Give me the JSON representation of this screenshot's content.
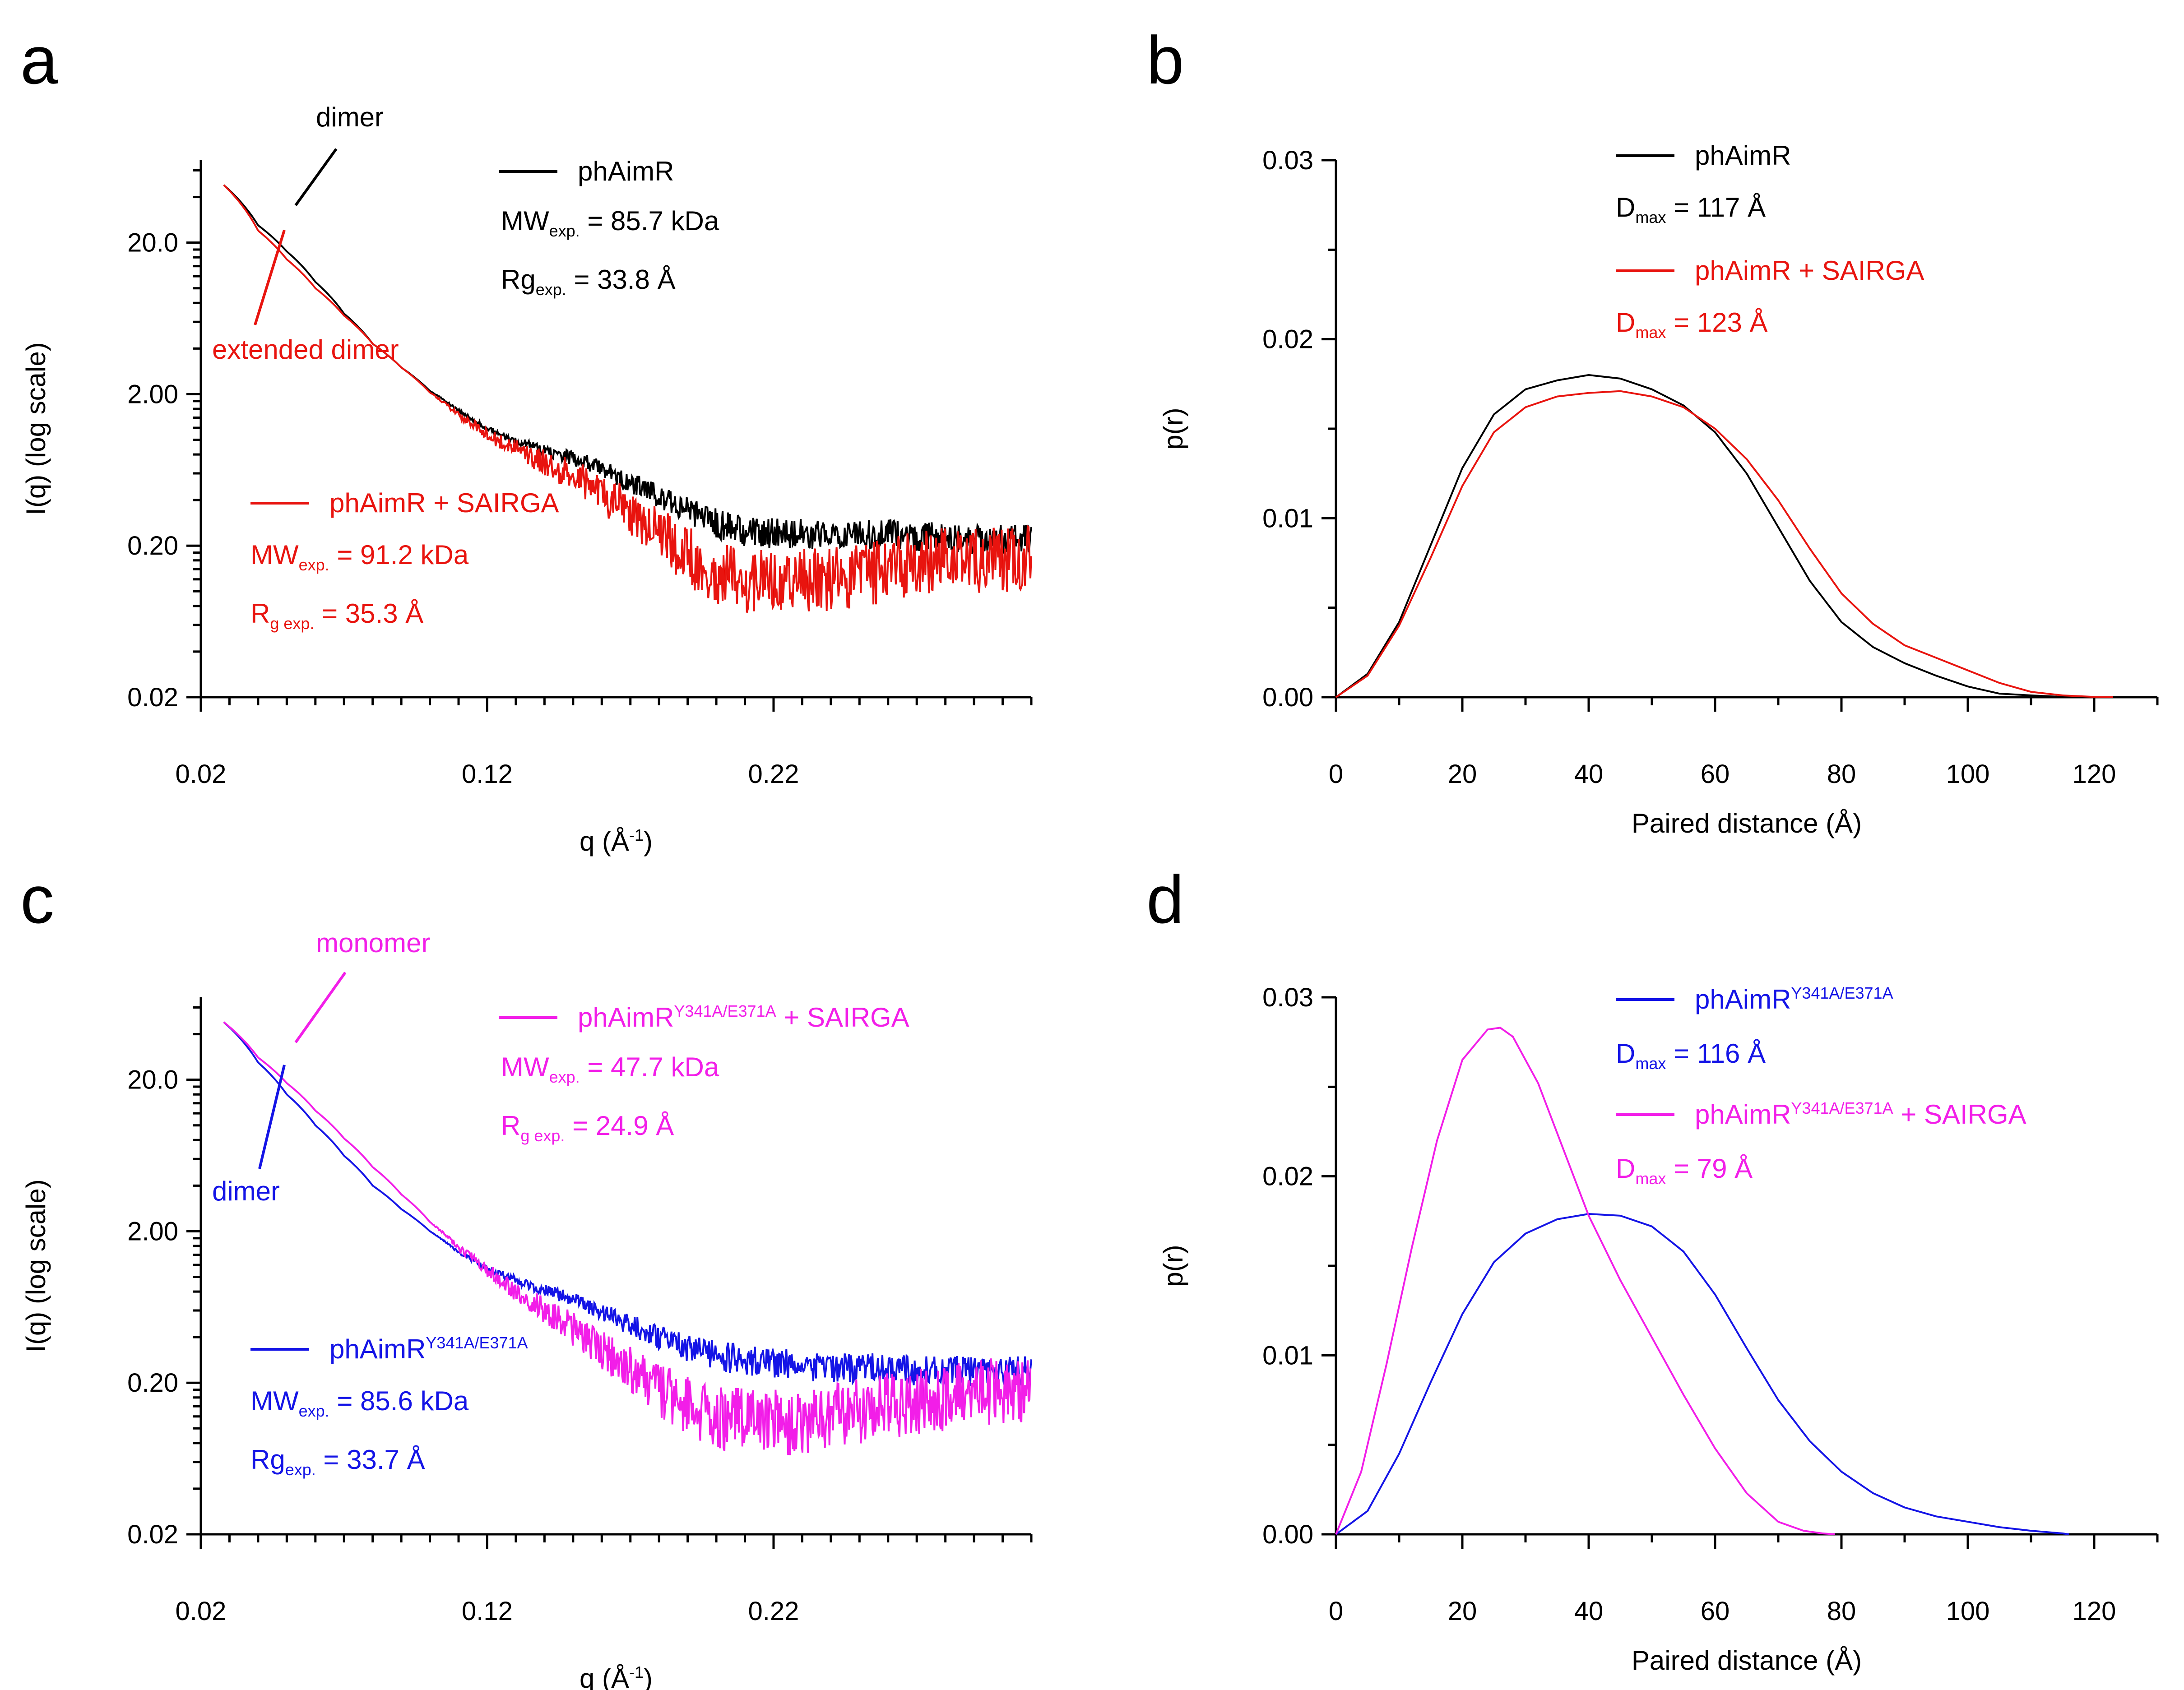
{
  "panels": {
    "a": {
      "label": "a"
    },
    "b": {
      "label": "b"
    },
    "c": {
      "label": "c"
    },
    "d": {
      "label": "d"
    }
  },
  "colors": {
    "black": "#000000",
    "red": "#e8140f",
    "blue": "#1414e6",
    "magenta": "#f21ee8"
  },
  "chart_data": [
    {
      "id": "a",
      "type": "line",
      "xlabel_main": "q (Å",
      "xlabel_sup": "-1",
      "xlabel_end": ")",
      "ylabel": "I(q) (log scale)",
      "xlim": [
        0.02,
        0.31
      ],
      "ylim_log": [
        0.02,
        70
      ],
      "yscale": "log",
      "xticks": [
        "0.02",
        "0.12",
        "0.22"
      ],
      "yticks": [
        "20.0",
        "2.00",
        "0.20",
        "0.02"
      ],
      "series": [
        {
          "name": "phAimR",
          "color": "#000000",
          "x": [
            0.028,
            0.04,
            0.05,
            0.06,
            0.07,
            0.08,
            0.09,
            0.1,
            0.11,
            0.12,
            0.13,
            0.14,
            0.15,
            0.16,
            0.17,
            0.18,
            0.19,
            0.2,
            0.21,
            0.22,
            0.23,
            0.24,
            0.25,
            0.26,
            0.27,
            0.28,
            0.29,
            0.3,
            0.31
          ],
          "y": [
            48,
            26,
            17.5,
            11,
            6.8,
            4.3,
            3.0,
            2.1,
            1.55,
            1.18,
            0.98,
            0.86,
            0.76,
            0.64,
            0.52,
            0.42,
            0.34,
            0.28,
            0.25,
            0.24,
            0.24,
            0.24,
            0.24,
            0.24,
            0.23,
            0.23,
            0.22,
            0.22,
            0.22
          ]
        },
        {
          "name": "phAimR + SAIRGA",
          "color": "#e8140f",
          "x": [
            0.028,
            0.04,
            0.05,
            0.06,
            0.07,
            0.08,
            0.09,
            0.1,
            0.11,
            0.12,
            0.13,
            0.14,
            0.15,
            0.16,
            0.17,
            0.18,
            0.19,
            0.2,
            0.21,
            0.22,
            0.23,
            0.24,
            0.25,
            0.26,
            0.27,
            0.28,
            0.29,
            0.3,
            0.31
          ],
          "y": [
            48,
            24,
            15.5,
            10,
            6.6,
            4.3,
            3.0,
            2.05,
            1.45,
            1.08,
            0.86,
            0.7,
            0.57,
            0.44,
            0.33,
            0.24,
            0.17,
            0.13,
            0.12,
            0.12,
            0.12,
            0.12,
            0.13,
            0.14,
            0.15,
            0.16,
            0.16,
            0.16,
            0.17
          ]
        }
      ],
      "legend": [
        {
          "name": "phAimR",
          "color": "#000000",
          "mw_prefix": "MW",
          "mw_sub": "exp.",
          "mw_value": " = 85.7 kDa",
          "rg_prefix": "Rg",
          "rg_sub": "exp.",
          "rg_value": " = 33.8 Å"
        },
        {
          "name": "phAimR + SAIRGA",
          "color": "#e8140f",
          "mw_prefix": "MW",
          "mw_sub": "exp.",
          "mw_value": " = 91.2 kDa",
          "rg_prefix": "R",
          "rg_sub": "g exp.",
          "rg_value": " = 35.3 Å"
        }
      ],
      "annotations": [
        {
          "text": "dimer",
          "color": "#000000"
        },
        {
          "text": "extended dimer",
          "color": "#e8140f"
        }
      ]
    },
    {
      "id": "b",
      "type": "line",
      "xlabel": "Paired distance (Å)",
      "ylabel": "p(r)",
      "xlim": [
        0,
        130
      ],
      "ylim": [
        0,
        0.03
      ],
      "xticks": [
        "0",
        "20",
        "40",
        "60",
        "80",
        "100",
        "120"
      ],
      "yticks": [
        "0.00",
        "0.01",
        "0.02",
        "0.03"
      ],
      "series": [
        {
          "name": "phAimR",
          "color": "#000000",
          "x": [
            0,
            5,
            10,
            15,
            20,
            25,
            30,
            35,
            40,
            45,
            50,
            55,
            60,
            65,
            70,
            75,
            80,
            85,
            90,
            95,
            100,
            105,
            110,
            115,
            117
          ],
          "y": [
            0,
            0.0013,
            0.0042,
            0.0085,
            0.0128,
            0.0158,
            0.0172,
            0.0177,
            0.018,
            0.0178,
            0.0172,
            0.0163,
            0.0148,
            0.0125,
            0.0095,
            0.0065,
            0.0042,
            0.0028,
            0.0019,
            0.0012,
            0.0006,
            0.0002,
            0.0001,
            2e-05,
            0
          ]
        },
        {
          "name": "phAimR + SAIRGA",
          "color": "#e8140f",
          "x": [
            0,
            5,
            10,
            15,
            20,
            25,
            30,
            35,
            40,
            45,
            50,
            55,
            60,
            65,
            70,
            75,
            80,
            85,
            90,
            95,
            100,
            105,
            110,
            115,
            120,
            123
          ],
          "y": [
            0,
            0.0012,
            0.004,
            0.0078,
            0.0118,
            0.0148,
            0.0162,
            0.0168,
            0.017,
            0.0171,
            0.0168,
            0.0162,
            0.015,
            0.0133,
            0.011,
            0.0083,
            0.0058,
            0.0041,
            0.0029,
            0.0022,
            0.0015,
            0.0008,
            0.0003,
            0.0001,
            2e-05,
            0
          ]
        }
      ],
      "legend": [
        {
          "name": "phAimR",
          "color": "#000000",
          "dmax_prefix": "D",
          "dmax_sub": "max",
          "dmax_value": " = 117 Å"
        },
        {
          "name": "phAimR + SAIRGA",
          "color": "#e8140f",
          "dmax_prefix": "D",
          "dmax_sub": "max",
          "dmax_value": " = 123 Å"
        }
      ]
    },
    {
      "id": "c",
      "type": "line",
      "xlabel_main": "q (Å",
      "xlabel_sup": "-1",
      "xlabel_end": ")",
      "ylabel": "I(q) (log scale)",
      "xlim": [
        0.02,
        0.31
      ],
      "ylim_log": [
        0.02,
        70
      ],
      "yscale": "log",
      "xticks": [
        "0.02",
        "0.12",
        "0.22"
      ],
      "yticks": [
        "20.0",
        "2.00",
        "0.20",
        "0.02"
      ],
      "series": [
        {
          "name": "phAimR Y341A/E371A",
          "color": "#1414e6",
          "x": [
            0.028,
            0.04,
            0.05,
            0.06,
            0.07,
            0.08,
            0.09,
            0.1,
            0.11,
            0.12,
            0.13,
            0.14,
            0.15,
            0.16,
            0.17,
            0.18,
            0.19,
            0.2,
            0.21,
            0.22,
            0.23,
            0.24,
            0.25,
            0.26,
            0.27,
            0.28,
            0.29,
            0.3,
            0.31
          ],
          "y": [
            48,
            26,
            16,
            10,
            6.3,
            4.0,
            2.8,
            2.0,
            1.45,
            1.12,
            0.95,
            0.82,
            0.7,
            0.58,
            0.48,
            0.4,
            0.34,
            0.3,
            0.28,
            0.27,
            0.26,
            0.25,
            0.25,
            0.25,
            0.24,
            0.24,
            0.24,
            0.24,
            0.24
          ]
        },
        {
          "name": "phAimR Y341A/E371A + SAIRGA",
          "color": "#f21ee8",
          "x": [
            0.028,
            0.04,
            0.05,
            0.06,
            0.07,
            0.08,
            0.09,
            0.1,
            0.11,
            0.12,
            0.13,
            0.14,
            0.15,
            0.16,
            0.17,
            0.18,
            0.19,
            0.2,
            0.21,
            0.22,
            0.23,
            0.24,
            0.25,
            0.26,
            0.27,
            0.28,
            0.29,
            0.3,
            0.31
          ],
          "y": [
            48,
            28,
            19,
            12.5,
            8.2,
            5.3,
            3.5,
            2.3,
            1.55,
            1.1,
            0.8,
            0.6,
            0.45,
            0.33,
            0.25,
            0.18,
            0.14,
            0.12,
            0.11,
            0.11,
            0.11,
            0.12,
            0.13,
            0.14,
            0.15,
            0.16,
            0.17,
            0.18,
            0.18
          ]
        }
      ],
      "legend": [
        {
          "name_main": "phAimR",
          "name_sup": "Y341A/E371A",
          "name_end": " + SAIRGA",
          "color": "#f21ee8",
          "mw_prefix": "MW",
          "mw_sub": "exp.",
          "mw_value": " = 47.7 kDa",
          "rg_prefix": "R",
          "rg_sub": "g exp.",
          "rg_value": " = 24.9 Å"
        },
        {
          "name_main": "phAimR",
          "name_sup": "Y341A/E371A",
          "name_end": "",
          "color": "#1414e6",
          "mw_prefix": "MW",
          "mw_sub": "exp.",
          "mw_value": " = 85.6 kDa",
          "rg_prefix": "Rg",
          "rg_sub": "exp.",
          "rg_value": " = 33.7 Å"
        }
      ],
      "annotations": [
        {
          "text": "monomer",
          "color": "#f21ee8"
        },
        {
          "text": "dimer",
          "color": "#1414e6"
        }
      ]
    },
    {
      "id": "d",
      "type": "line",
      "xlabel": "Paired distance (Å)",
      "ylabel": "p(r)",
      "xlim": [
        0,
        130
      ],
      "ylim": [
        0,
        0.03
      ],
      "xticks": [
        "0",
        "20",
        "40",
        "60",
        "80",
        "100",
        "120"
      ],
      "yticks": [
        "0.00",
        "0.01",
        "0.02",
        "0.03"
      ],
      "series": [
        {
          "name": "phAimR Y341A/E371A",
          "color": "#1414e6",
          "x": [
            0,
            5,
            10,
            15,
            20,
            25,
            30,
            35,
            40,
            45,
            50,
            55,
            60,
            65,
            70,
            75,
            80,
            85,
            90,
            95,
            100,
            105,
            110,
            115,
            116
          ],
          "y": [
            0,
            0.0013,
            0.0045,
            0.0085,
            0.0123,
            0.0152,
            0.0168,
            0.0176,
            0.0179,
            0.0178,
            0.0172,
            0.0158,
            0.0134,
            0.0104,
            0.0075,
            0.0052,
            0.0035,
            0.0023,
            0.0015,
            0.001,
            0.0007,
            0.0004,
            0.0002,
            5e-05,
            0
          ]
        },
        {
          "name": "phAimR Y341A/E371A + SAIRGA",
          "color": "#f21ee8",
          "x": [
            0,
            4,
            8,
            12,
            16,
            20,
            24,
            26,
            28,
            32,
            36,
            40,
            45,
            50,
            55,
            60,
            65,
            70,
            74,
            77,
            79
          ],
          "y": [
            0,
            0.0035,
            0.0095,
            0.016,
            0.022,
            0.0265,
            0.0282,
            0.0283,
            0.0278,
            0.0252,
            0.0215,
            0.0178,
            0.0142,
            0.011,
            0.0078,
            0.0048,
            0.0023,
            0.0007,
            0.0002,
            5e-05,
            0
          ]
        }
      ],
      "legend": [
        {
          "name_main": "phAimR",
          "name_sup": "Y341A/E371A",
          "name_end": "",
          "color": "#1414e6",
          "dmax_prefix": "D",
          "dmax_sub": "max",
          "dmax_value": " = 116 Å"
        },
        {
          "name_main": "phAimR",
          "name_sup": "Y341A/E371A",
          "name_end": " + SAIRGA",
          "color": "#f21ee8",
          "dmax_prefix": "D",
          "dmax_sub": "max",
          "dmax_value": " = 79 Å"
        }
      ]
    }
  ]
}
